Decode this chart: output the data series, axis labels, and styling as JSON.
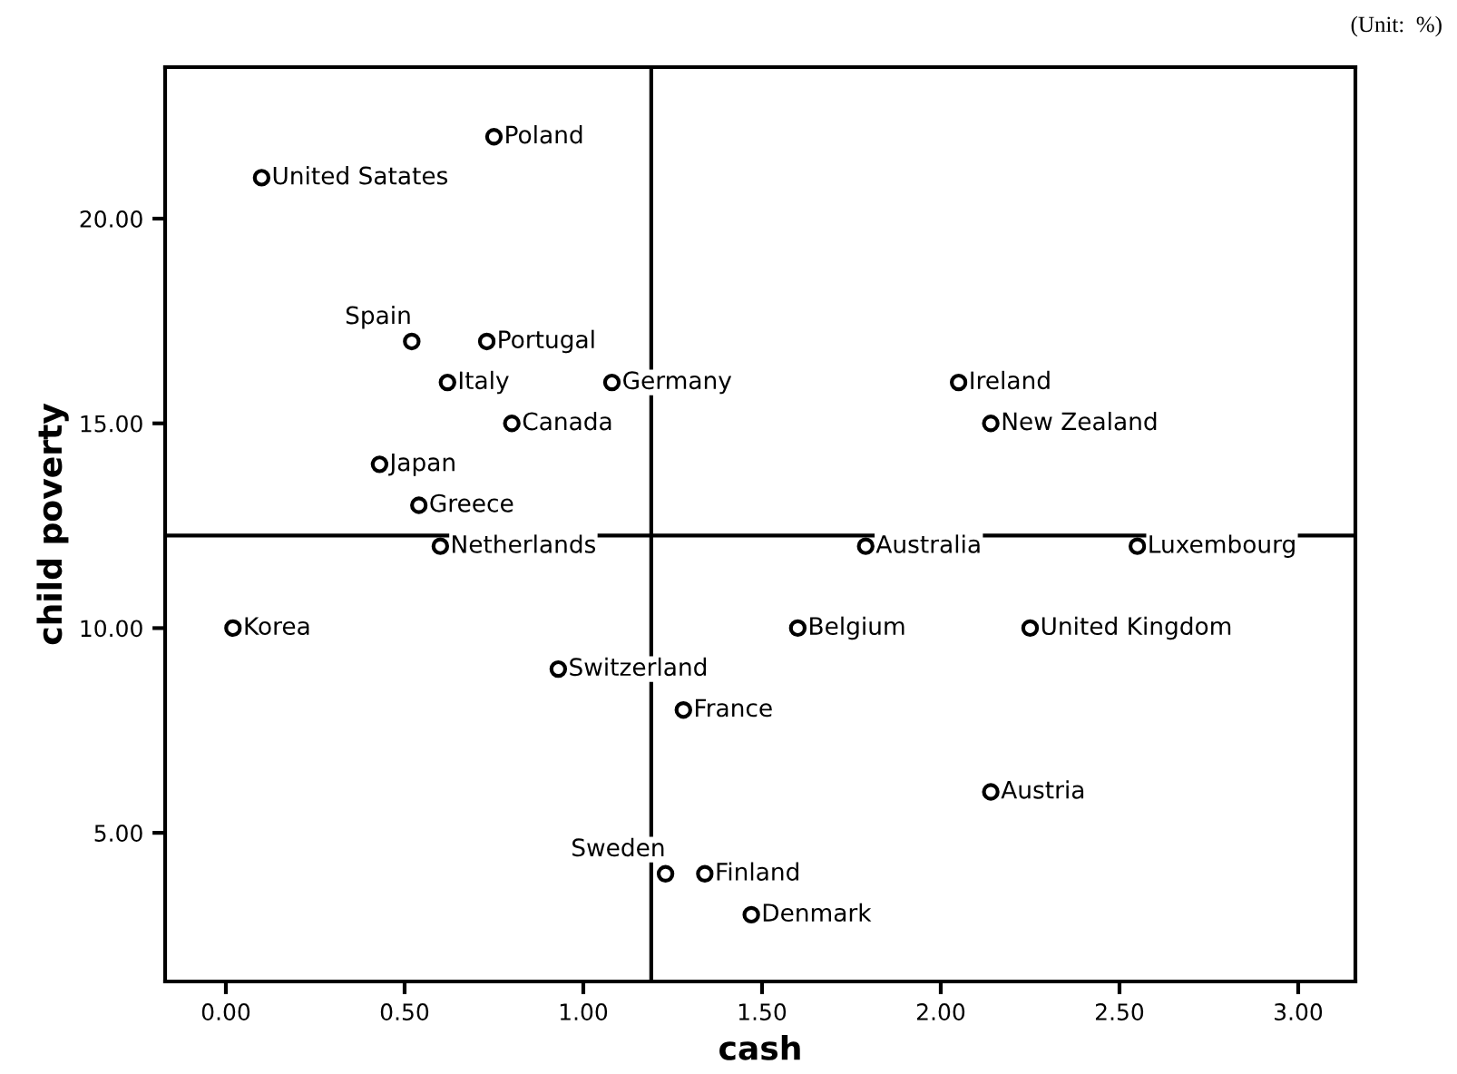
{
  "chart_data": {
    "type": "scatter",
    "xlabel": "cash",
    "ylabel": "child poverty",
    "x": [
      0.75,
      0.1,
      0.52,
      0.73,
      0.62,
      1.08,
      2.05,
      2.14,
      0.8,
      0.43,
      0.54,
      0.6,
      1.79,
      2.55,
      0.02,
      1.6,
      2.25,
      0.93,
      1.28,
      2.14,
      1.23,
      1.34,
      1.47
    ],
    "series": [
      {
        "color": "#000000",
        "values": [
          22,
          21,
          17,
          17,
          16,
          16,
          16,
          15,
          15,
          14,
          13,
          12,
          12,
          12,
          10,
          10,
          10,
          9,
          8,
          6,
          4,
          4,
          3
        ]
      }
    ],
    "marker": "circle",
    "grid": false,
    "xlim": [
      -0.17,
      3.16
    ],
    "ylim": [
      1.37,
      23.7
    ],
    "xticks": [
      {
        "value": 0,
        "label": "0.00"
      },
      {
        "value": 0.5,
        "label": "0.50"
      },
      {
        "value": 1,
        "label": "1.00"
      },
      {
        "value": 1.5,
        "label": "1.50"
      },
      {
        "value": 2,
        "label": "2.00"
      },
      {
        "value": 2.5,
        "label": "2.50"
      },
      {
        "value": 3,
        "label": "3.00"
      }
    ],
    "yticks": [
      {
        "value": 5,
        "label": "5.00"
      },
      {
        "value": 10,
        "label": "10.00"
      },
      {
        "value": 15,
        "label": "15.00"
      },
      {
        "value": 20,
        "label": "20.00"
      }
    ],
    "ref_lines": [
      {
        "axis": "x",
        "value": 1.19,
        "color": "#000000"
      },
      {
        "axis": "y",
        "value": 12.26,
        "color": "#000000"
      }
    ],
    "annotations": [
      "(Unit:  %)",
      {
        "text": "Poland",
        "x": 0.75,
        "y": 22
      },
      {
        "text": "United Satates",
        "x": 0.1,
        "y": 21
      },
      {
        "text": "Spain",
        "x": 0.52,
        "y": 17
      },
      {
        "text": "Portugal",
        "x": 0.73,
        "y": 17
      },
      {
        "text": "Italy",
        "x": 0.62,
        "y": 16
      },
      {
        "text": "Germany",
        "x": 1.08,
        "y": 16
      },
      {
        "text": "Ireland",
        "x": 2.05,
        "y": 16
      },
      {
        "text": "New Zealand",
        "x": 2.14,
        "y": 15
      },
      {
        "text": "Canada",
        "x": 0.8,
        "y": 15
      },
      {
        "text": "Japan",
        "x": 0.43,
        "y": 14
      },
      {
        "text": "Greece",
        "x": 0.54,
        "y": 13
      },
      {
        "text": "Netherlands",
        "x": 0.6,
        "y": 12
      },
      {
        "text": "Australia",
        "x": 1.79,
        "y": 12
      },
      {
        "text": "Luxembourg",
        "x": 2.55,
        "y": 12
      },
      {
        "text": "Korea",
        "x": 0.02,
        "y": 10
      },
      {
        "text": "Belgium",
        "x": 1.6,
        "y": 10
      },
      {
        "text": "United Kingdom",
        "x": 2.25,
        "y": 10
      },
      {
        "text": "Switzerland",
        "x": 0.93,
        "y": 9
      },
      {
        "text": "France",
        "x": 1.28,
        "y": 8
      },
      {
        "text": "Austria",
        "x": 2.14,
        "y": 6
      },
      {
        "text": "Sweden",
        "x": 1.23,
        "y": 4
      },
      {
        "text": "Finland",
        "x": 1.34,
        "y": 4
      },
      {
        "text": "Denmark",
        "x": 1.47,
        "y": 3
      }
    ]
  }
}
